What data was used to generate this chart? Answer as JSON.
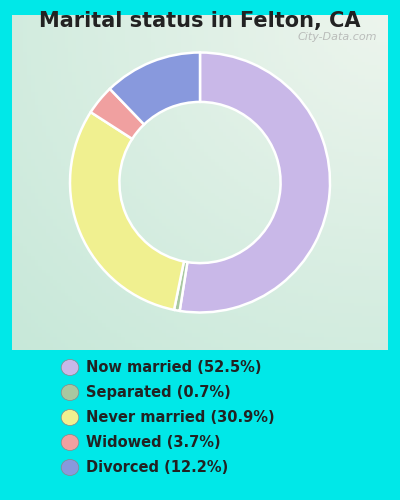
{
  "title": "Marital status in Felton, CA",
  "slices": [
    52.5,
    0.7,
    30.9,
    3.7,
    12.2
  ],
  "labels": [
    "Now married (52.5%)",
    "Separated (0.7%)",
    "Never married (30.9%)",
    "Widowed (3.7%)",
    "Divorced (12.2%)"
  ],
  "colors": [
    "#c9b8e8",
    "#a8c8a0",
    "#f0f090",
    "#f0a0a0",
    "#8899dd"
  ],
  "background_color": "#00e8e8",
  "title_fontsize": 15,
  "legend_fontsize": 10.5,
  "donut_width": 0.38,
  "watermark": "City-Data.com",
  "startangle": 90
}
